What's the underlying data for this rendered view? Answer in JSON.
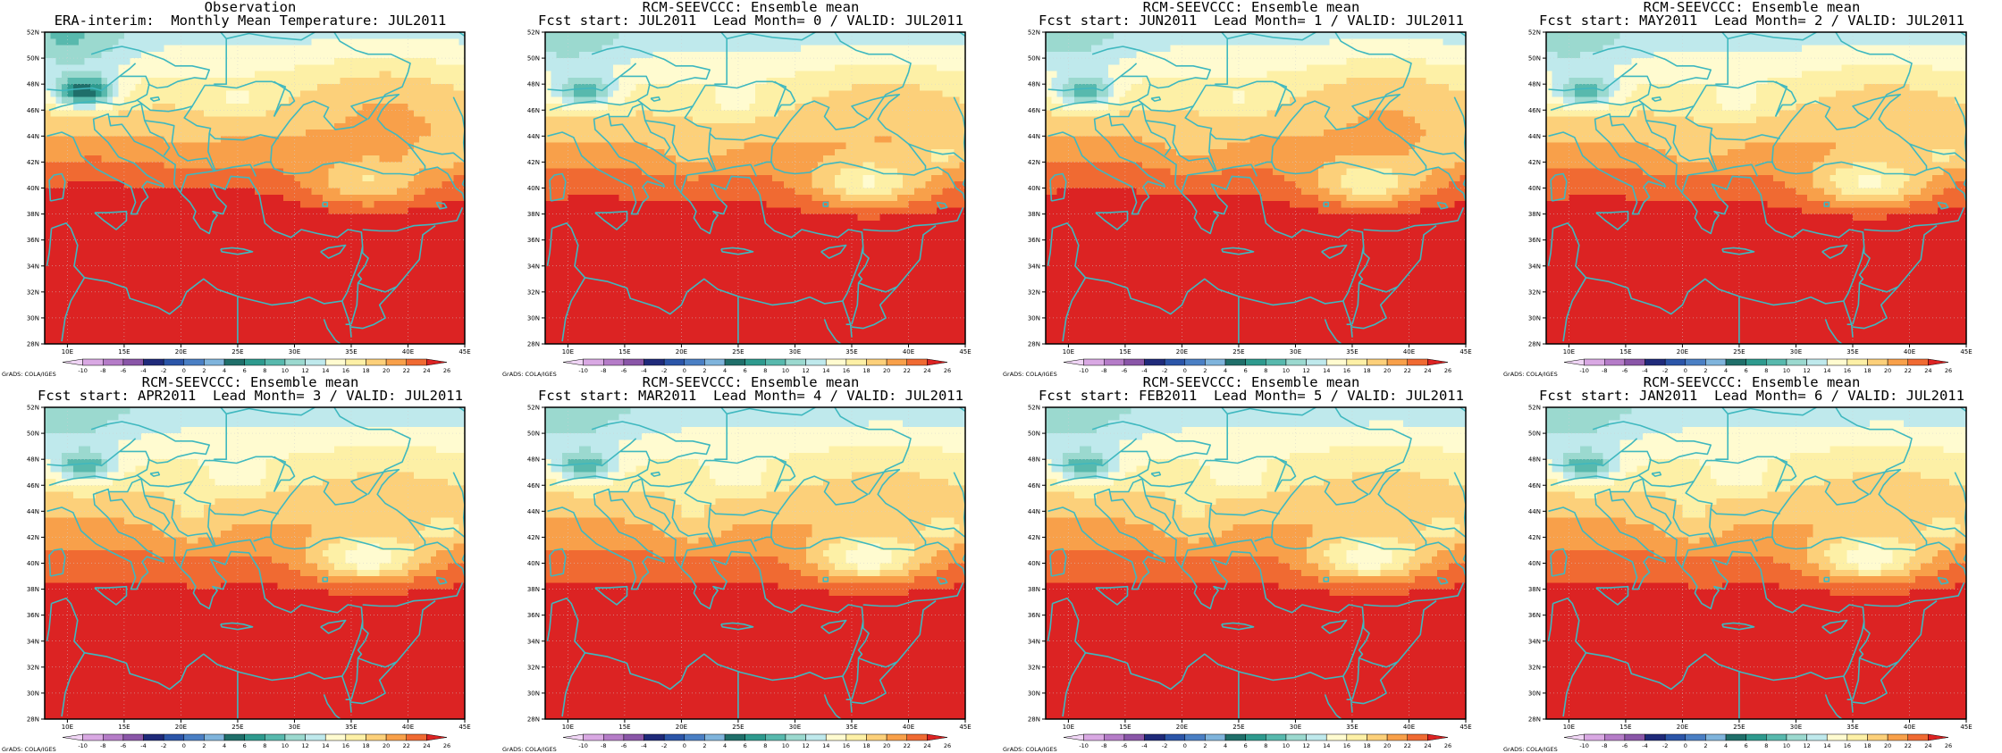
{
  "colors": {
    "land_outline": "#3fb8bf",
    "frame": "#000000",
    "levels": [
      {
        "min": -10,
        "color": "#f0d5f5"
      },
      {
        "min": -8,
        "color": "#d9a8e3"
      },
      {
        "min": -6,
        "color": "#b57cc8"
      },
      {
        "min": -4,
        "color": "#8a56a8"
      },
      {
        "min": -2,
        "color": "#1f2a7a"
      },
      {
        "min": 0,
        "color": "#2b55a8"
      },
      {
        "min": 2,
        "color": "#4a7fc4"
      },
      {
        "min": 4,
        "color": "#7fb4dc"
      },
      {
        "min": 6,
        "color": "#1f6f6a"
      },
      {
        "min": 8,
        "color": "#2e9a8e"
      },
      {
        "min": 10,
        "color": "#58b9ad"
      },
      {
        "min": 12,
        "color": "#9bd9cf"
      },
      {
        "min": 14,
        "color": "#bfe9ec"
      },
      {
        "min": 16,
        "color": "#fffbd0"
      },
      {
        "min": 18,
        "color": "#fdf0a6"
      },
      {
        "min": 20,
        "color": "#fcd07a"
      },
      {
        "min": 22,
        "color": "#f8a04a"
      },
      {
        "min": 24,
        "color": "#f06a32"
      },
      {
        "min": 26,
        "color": "#dc2323"
      }
    ]
  },
  "map": {
    "lon_range": [
      8,
      45
    ],
    "lat_range": [
      28,
      52
    ],
    "lon_ticks": [
      "10E",
      "15E",
      "20E",
      "25E",
      "30E",
      "35E",
      "40E",
      "45E"
    ],
    "lon_tick_values": [
      10,
      15,
      20,
      25,
      30,
      35,
      40,
      45
    ],
    "lat_ticks": [
      "28N",
      "30N",
      "32N",
      "34N",
      "36N",
      "38N",
      "40N",
      "42N",
      "44N",
      "46N",
      "48N",
      "50N",
      "52N"
    ],
    "lat_tick_values": [
      28,
      30,
      32,
      34,
      36,
      38,
      40,
      42,
      44,
      46,
      48,
      50,
      52
    ]
  },
  "colorbar": {
    "labels": [
      "-10",
      "-8",
      "-6",
      "-4",
      "-2",
      "0",
      "2",
      "4",
      "6",
      "8",
      "10",
      "12",
      "14",
      "16",
      "18",
      "20",
      "22",
      "24",
      "26"
    ]
  },
  "credit": "GrADS: COLA/IGES",
  "panels": [
    {
      "title1": "Observation",
      "title2": "ERA-interim:  Monthly Mean Temperature: JUL2011"
    },
    {
      "title1": "RCM-SEEVCCC: Ensemble mean",
      "title2": "Fcst start: JUL2011  Lead Month= 0 / VALID: JUL2011"
    },
    {
      "title1": "RCM-SEEVCCC: Ensemble mean",
      "title2": "Fcst start: JUN2011  Lead Month= 1 / VALID: JUL2011"
    },
    {
      "title1": "RCM-SEEVCCC: Ensemble mean",
      "title2": "Fcst start: MAY2011  Lead Month= 2 / VALID: JUL2011"
    },
    {
      "title1": "RCM-SEEVCCC: Ensemble mean",
      "title2": "Fcst start: APR2011  Lead Month= 3 / VALID: JUL2011"
    },
    {
      "title1": "RCM-SEEVCCC: Ensemble mean",
      "title2": "Fcst start: MAR2011  Lead Month= 4 / VALID: JUL2011"
    },
    {
      "title1": "RCM-SEEVCCC: Ensemble mean",
      "title2": "Fcst start: FEB2011  Lead Month= 5 / VALID: JUL2011"
    },
    {
      "title1": "RCM-SEEVCCC: Ensemble mean",
      "title2": "Fcst start: JAN2011  Lead Month= 6 / VALID: JUL2011"
    }
  ]
}
